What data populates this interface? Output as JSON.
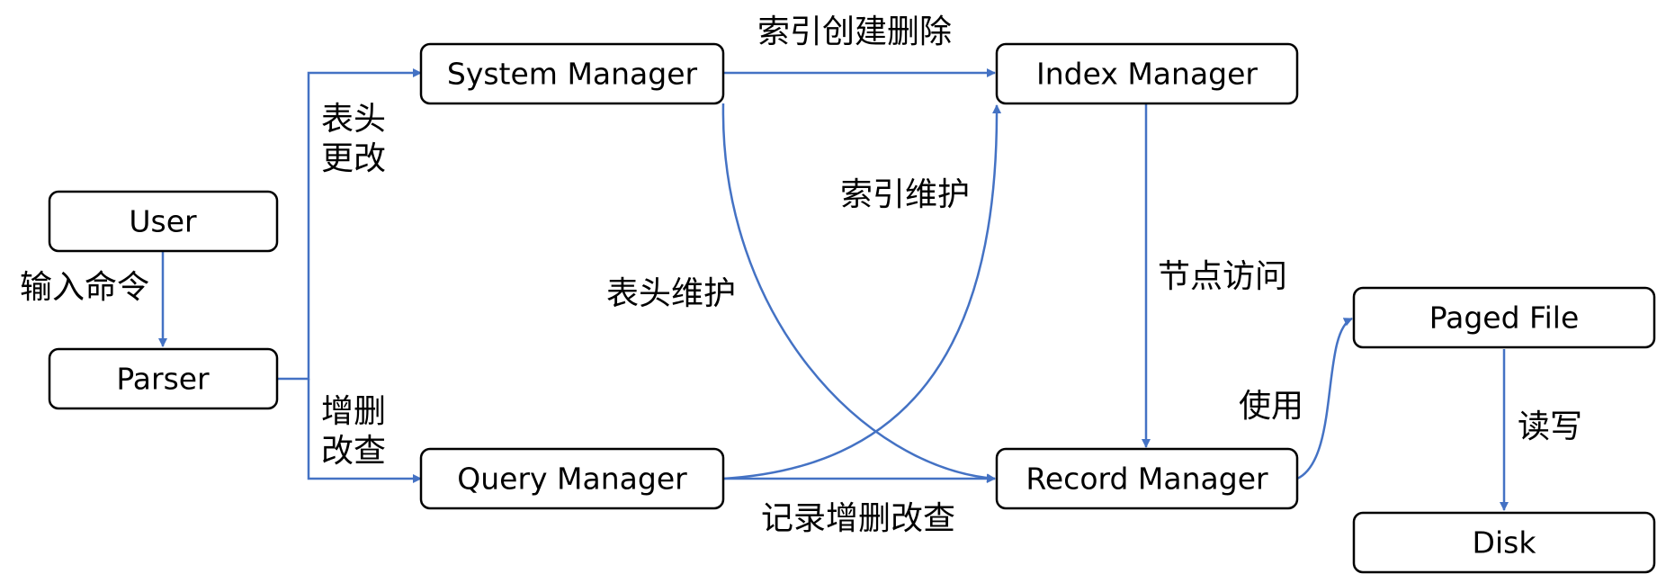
{
  "colors": {
    "edge": "#4472C4",
    "node_border": "#000000",
    "node_fill": "#ffffff",
    "text": "#000000"
  },
  "nodes": {
    "user": "User",
    "parser": "Parser",
    "system_manager": "System Manager",
    "query_manager": "Query Manager",
    "index_manager": "Index Manager",
    "record_manager": "Record Manager",
    "paged_file": "Paged File",
    "disk": "Disk"
  },
  "edge_labels": {
    "input_command": "输入命令",
    "header_change_line1": "表头",
    "header_change_line2": "更改",
    "crud_line1": "增删",
    "crud_line2": "改查",
    "index_create_delete": "索引创建删除",
    "index_maintain": "索引维护",
    "header_maintain": "表头维护",
    "record_crud": "记录增删改查",
    "node_access": "节点访问",
    "use": "使用",
    "read_write": "读写"
  }
}
